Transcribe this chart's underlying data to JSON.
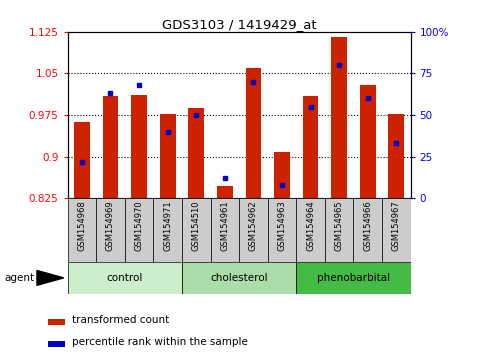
{
  "title": "GDS3103 / 1419429_at",
  "samples": [
    "GSM154968",
    "GSM154969",
    "GSM154970",
    "GSM154971",
    "GSM154510",
    "GSM154961",
    "GSM154962",
    "GSM154963",
    "GSM154964",
    "GSM154965",
    "GSM154966",
    "GSM154967"
  ],
  "groups": [
    {
      "name": "control",
      "color": "#cceecc",
      "indices": [
        0,
        1,
        2,
        3
      ]
    },
    {
      "name": "cholesterol",
      "color": "#aaddaa",
      "indices": [
        4,
        5,
        6,
        7
      ]
    },
    {
      "name": "phenobarbital",
      "color": "#44bb44",
      "indices": [
        8,
        9,
        10,
        11
      ]
    }
  ],
  "bar_bottom": 0.825,
  "red_values": [
    0.963,
    1.01,
    1.012,
    0.977,
    0.987,
    0.847,
    1.06,
    0.908,
    1.01,
    1.115,
    1.03,
    0.977
  ],
  "blue_values_pct": [
    22,
    63,
    68,
    40,
    50,
    12,
    70,
    8,
    55,
    80,
    60,
    33
  ],
  "ylim_left": [
    0.825,
    1.125
  ],
  "ylim_right": [
    0,
    100
  ],
  "yticks_left": [
    0.825,
    0.9,
    0.975,
    1.05,
    1.125
  ],
  "yticks_right": [
    0,
    25,
    50,
    75,
    100
  ],
  "ytick_labels_right": [
    "0",
    "25",
    "50",
    "75",
    "100%"
  ],
  "bar_color": "#cc2200",
  "dot_color": "#0000cc",
  "background_plot": "#ffffff",
  "background_sample": "#cccccc",
  "agent_label": "agent",
  "legend_red": "transformed count",
  "legend_blue": "percentile rank within the sample",
  "bar_width": 0.55
}
